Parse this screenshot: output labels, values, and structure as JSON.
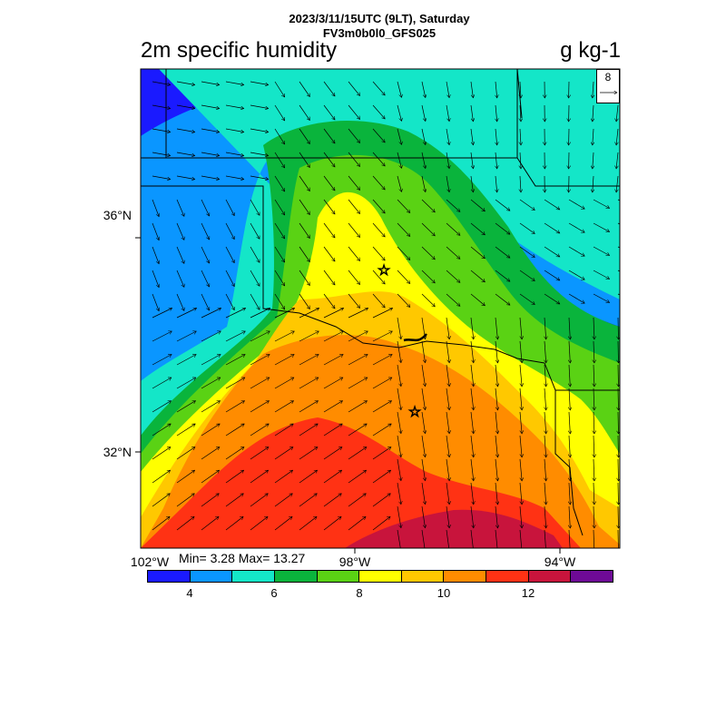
{
  "header": {
    "line1": "2023/3/11/15UTC (9LT), Saturday",
    "line2": "FV3m0b0l0_GFS025",
    "title": "2m specific humidity",
    "units": "g kg-1"
  },
  "axes": {
    "lat_labels": [
      "36°N",
      "32°N"
    ],
    "lon_labels": [
      "102°W",
      "98°W",
      "94°W"
    ]
  },
  "stats": {
    "text": "Min= 3.28 Max= 13.27",
    "min": 3.28,
    "max": 13.27
  },
  "reference_vector": {
    "label": "8"
  },
  "colorbar": {
    "colors": [
      "#1a1aff",
      "#0a96ff",
      "#14e6c8",
      "#0ab43c",
      "#5ad214",
      "#ffff00",
      "#ffc800",
      "#ff8c00",
      "#ff3214",
      "#c8143c",
      "#6e0a96"
    ],
    "labels": [
      "4",
      "6",
      "8",
      "10",
      "12"
    ]
  },
  "field_colors": {
    "blue": "#1a1aff",
    "sky": "#0a96ff",
    "aqua": "#14e6c8",
    "green": "#0ab43c",
    "lime": "#5ad214",
    "yellow": "#ffff00",
    "gold": "#ffc800",
    "orange": "#ff8c00",
    "red": "#ff3214",
    "crimson": "#c8143c"
  },
  "markers": [
    "star-oklahoma-city",
    "star-dallas"
  ]
}
